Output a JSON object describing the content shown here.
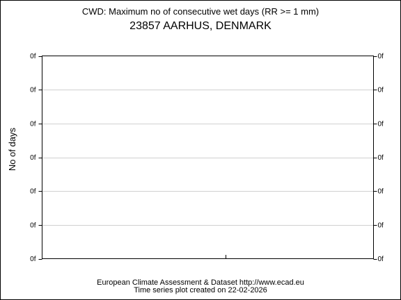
{
  "chart_data": {
    "type": "line",
    "title": "CWD: Maximum no of consecutive wet days (RR >= 1 mm)",
    "subtitle": "23857 AARHUS, DENMARK",
    "ylabel": "No of days",
    "xlabel": "",
    "y_tick_labels": [
      "0f",
      "0f",
      "0f",
      "0f",
      "0f",
      "0f",
      "0f"
    ],
    "grid": true,
    "series": []
  },
  "footer": {
    "line1": "European Climate Assessment & Dataset  http://www.ecad.eu",
    "line2": "Time series plot created on 22-02-2026"
  }
}
